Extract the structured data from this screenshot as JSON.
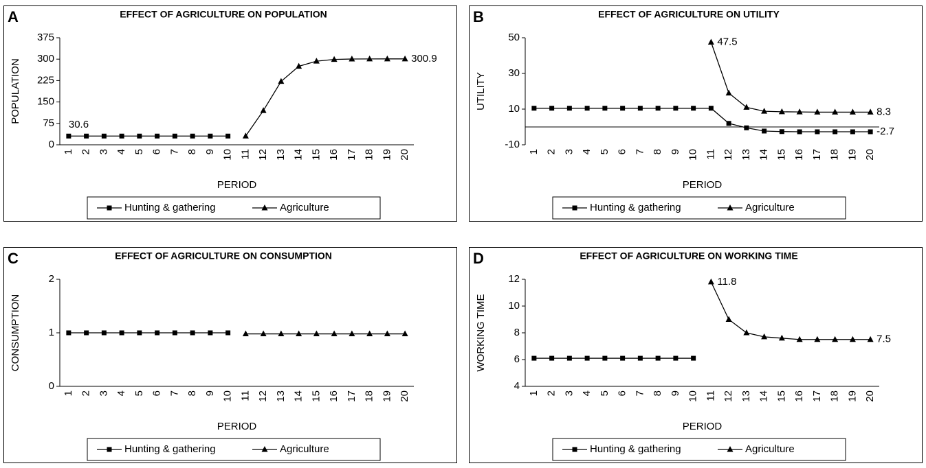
{
  "chart_data": [
    {
      "type": "line",
      "panel": "A",
      "title": "EFFECT OF AGRICULTURE ON POPULATION",
      "x_label": "PERIOD",
      "y_label": "POPULATION",
      "categories": [
        "1",
        "2",
        "3",
        "4",
        "5",
        "6",
        "7",
        "8",
        "9",
        "10",
        "11",
        "12",
        "13",
        "14",
        "15",
        "16",
        "17",
        "18",
        "19",
        "20"
      ],
      "ylim": [
        0,
        375
      ],
      "yticks": [
        0,
        75,
        150,
        225,
        300,
        375
      ],
      "series": [
        {
          "name": "Hunting & gathering",
          "color": "#000000",
          "marker": "square",
          "values": [
            30.6,
            30.6,
            30.6,
            30.6,
            30.6,
            30.6,
            30.6,
            30.6,
            30.6,
            30.6,
            null,
            null,
            null,
            null,
            null,
            null,
            null,
            null,
            null,
            null
          ],
          "value_labels": [
            "30.6",
            null,
            null,
            null,
            null,
            null,
            null,
            null,
            null,
            null,
            null,
            null,
            null,
            null,
            null,
            null,
            null,
            null,
            null,
            null
          ]
        },
        {
          "name": "Agriculture",
          "color": "#000000",
          "marker": "triangle",
          "values": [
            null,
            null,
            null,
            null,
            null,
            null,
            null,
            null,
            null,
            null,
            30.6,
            120,
            222,
            275,
            293,
            299,
            300.5,
            300.8,
            300.9,
            300.9
          ],
          "value_labels": [
            null,
            null,
            null,
            null,
            null,
            null,
            null,
            null,
            null,
            null,
            null,
            null,
            null,
            null,
            null,
            null,
            null,
            null,
            null,
            "300.9"
          ]
        }
      ]
    },
    {
      "type": "line",
      "panel": "B",
      "title": "EFFECT OF AGRICULTURE ON UTILITY",
      "x_label": "PERIOD",
      "y_label": "UTILITY",
      "categories": [
        "1",
        "2",
        "3",
        "4",
        "5",
        "6",
        "7",
        "8",
        "9",
        "10",
        "11",
        "12",
        "13",
        "14",
        "15",
        "16",
        "17",
        "18",
        "19",
        "20"
      ],
      "ylim": [
        -10,
        50
      ],
      "yticks": [
        -10,
        10,
        30,
        50
      ],
      "series": [
        {
          "name": "Hunting & gathering",
          "color": "#000000",
          "marker": "square",
          "values": [
            10.5,
            10.5,
            10.5,
            10.5,
            10.5,
            10.5,
            10.5,
            10.5,
            10.5,
            10.5,
            10.5,
            2,
            -0.5,
            -2.3,
            -2.6,
            -2.7,
            -2.7,
            -2.7,
            -2.7,
            -2.7
          ],
          "value_labels": [
            null,
            null,
            null,
            null,
            null,
            null,
            null,
            null,
            null,
            null,
            null,
            null,
            null,
            null,
            null,
            null,
            null,
            null,
            null,
            "-2.7"
          ]
        },
        {
          "name": "Agriculture",
          "color": "#000000",
          "marker": "triangle",
          "values": [
            null,
            null,
            null,
            null,
            null,
            null,
            null,
            null,
            null,
            null,
            47.5,
            19,
            11,
            8.8,
            8.5,
            8.4,
            8.3,
            8.3,
            8.3,
            8.3
          ],
          "value_labels": [
            null,
            null,
            null,
            null,
            null,
            null,
            null,
            null,
            null,
            null,
            "47.5",
            null,
            null,
            null,
            null,
            null,
            null,
            null,
            null,
            "8.3"
          ]
        }
      ]
    },
    {
      "type": "line",
      "panel": "C",
      "title": "EFFECT OF AGRICULTURE ON CONSUMPTION",
      "x_label": "PERIOD",
      "y_label": "CONSUMPTION",
      "categories": [
        "1",
        "2",
        "3",
        "4",
        "5",
        "6",
        "7",
        "8",
        "9",
        "10",
        "11",
        "12",
        "13",
        "14",
        "15",
        "16",
        "17",
        "18",
        "19",
        "20"
      ],
      "ylim": [
        0,
        2
      ],
      "yticks": [
        0,
        1,
        2
      ],
      "series": [
        {
          "name": "Hunting & gathering",
          "color": "#000000",
          "marker": "square",
          "values": [
            1,
            1,
            1,
            1,
            1,
            1,
            1,
            1,
            1,
            1,
            null,
            null,
            null,
            null,
            null,
            null,
            null,
            null,
            null,
            null
          ]
        },
        {
          "name": "Agriculture",
          "color": "#000000",
          "marker": "triangle",
          "values": [
            null,
            null,
            null,
            null,
            null,
            null,
            null,
            null,
            null,
            null,
            0.98,
            0.98,
            0.98,
            0.98,
            0.98,
            0.98,
            0.98,
            0.98,
            0.98,
            0.98
          ]
        }
      ]
    },
    {
      "type": "line",
      "panel": "D",
      "title": "EFFECT OF AGRICULTURE ON WORKING TIME",
      "x_label": "PERIOD",
      "y_label": "WORKING TIME",
      "categories": [
        "1",
        "2",
        "3",
        "4",
        "5",
        "6",
        "7",
        "8",
        "9",
        "10",
        "11",
        "12",
        "13",
        "14",
        "15",
        "16",
        "17",
        "18",
        "19",
        "20"
      ],
      "ylim": [
        4,
        12
      ],
      "yticks": [
        4,
        6,
        8,
        10,
        12
      ],
      "series": [
        {
          "name": "Hunting & gathering",
          "color": "#000000",
          "marker": "square",
          "values": [
            6.1,
            6.1,
            6.1,
            6.1,
            6.1,
            6.1,
            6.1,
            6.1,
            6.1,
            6.1,
            null,
            null,
            null,
            null,
            null,
            null,
            null,
            null,
            null,
            null
          ]
        },
        {
          "name": "Agriculture",
          "color": "#000000",
          "marker": "triangle",
          "values": [
            null,
            null,
            null,
            null,
            null,
            null,
            null,
            null,
            null,
            null,
            11.8,
            9.0,
            8.0,
            7.7,
            7.6,
            7.5,
            7.5,
            7.5,
            7.5,
            7.5
          ],
          "value_labels": [
            null,
            null,
            null,
            null,
            null,
            null,
            null,
            null,
            null,
            null,
            "11.8",
            null,
            null,
            null,
            null,
            null,
            null,
            null,
            null,
            "7.5"
          ]
        }
      ]
    }
  ]
}
